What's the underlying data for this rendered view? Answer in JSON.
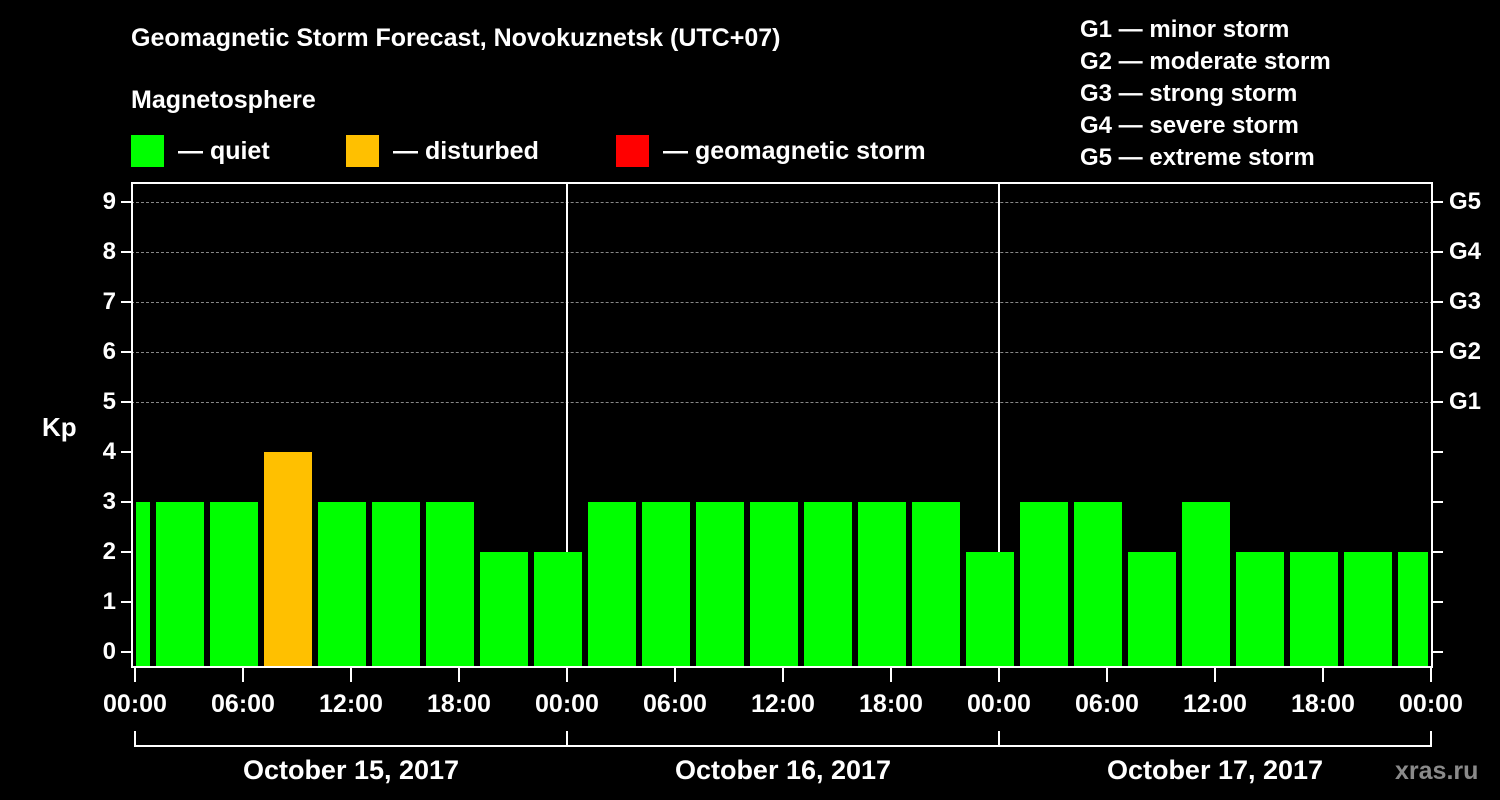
{
  "header": {
    "title": "Geomagnetic Storm Forecast, Novokuznetsk (UTC+07)",
    "subtitle": "Magnetosphere"
  },
  "legend": [
    {
      "label": "— quiet",
      "color": "#00ff00"
    },
    {
      "label": "— disturbed",
      "color": "#ffc000"
    },
    {
      "label": "— geomagnetic storm",
      "color": "#ff0000"
    }
  ],
  "storm_scale": [
    "G1 — minor storm",
    "G2 — moderate storm",
    "G3 — strong storm",
    "G4 — severe storm",
    "G5 — extreme storm"
  ],
  "watermark": "xras.ru",
  "chart_data": {
    "type": "bar",
    "title": "Geomagnetic Storm Forecast, Novokuznetsk (UTC+07)",
    "subtitle": "Magnetosphere",
    "ylabel": "Kp",
    "xlabel": "",
    "ylim": [
      0,
      9
    ],
    "yticks": [
      0,
      1,
      2,
      3,
      4,
      5,
      6,
      7,
      8,
      9
    ],
    "right_axis_labels": [
      {
        "kp": 5,
        "label": "G1"
      },
      {
        "kp": 6,
        "label": "G2"
      },
      {
        "kp": 7,
        "label": "G3"
      },
      {
        "kp": 8,
        "label": "G4"
      },
      {
        "kp": 9,
        "label": "G5"
      }
    ],
    "grid": "dashed horizontal at Kp 5-9",
    "xtick_labels": [
      "00:00",
      "06:00",
      "12:00",
      "18:00",
      "00:00",
      "06:00",
      "12:00",
      "18:00",
      "00:00",
      "06:00",
      "12:00",
      "18:00",
      "00:00"
    ],
    "dates": [
      "October 15, 2017",
      "October 16, 2017",
      "October 17, 2017"
    ],
    "interval_hours": 3,
    "values": [
      3,
      3,
      3,
      4,
      3,
      3,
      3,
      2,
      2,
      3,
      3,
      3,
      3,
      3,
      3,
      3,
      2,
      3,
      3,
      2,
      3,
      2,
      2,
      2,
      2
    ],
    "colors": {
      "quiet": "#00ff00",
      "disturbed": "#ffc000",
      "storm": "#ff0000"
    },
    "legend": [
      "quiet",
      "disturbed",
      "geomagnetic storm"
    ]
  }
}
